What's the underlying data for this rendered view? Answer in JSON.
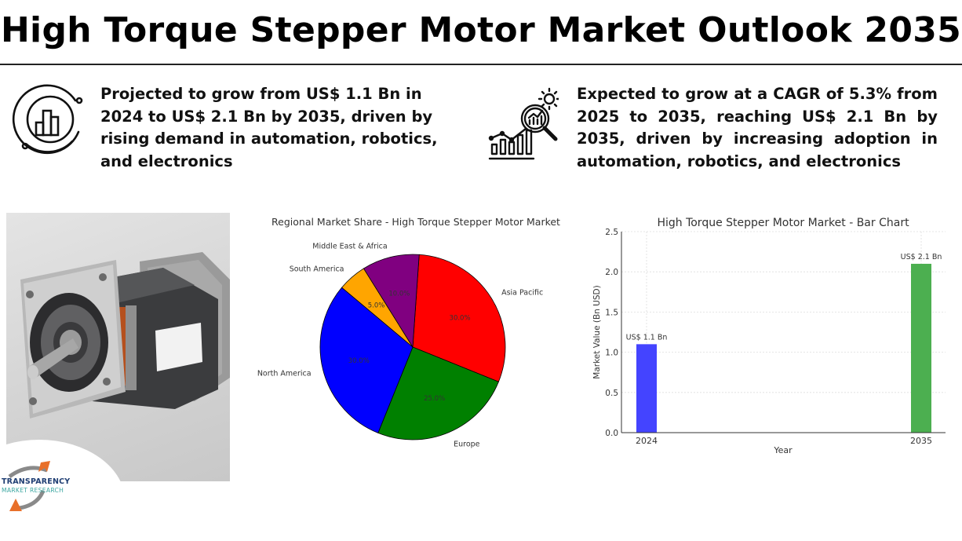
{
  "header": {
    "title": "High Torque Stepper Motor Market Outlook 2035"
  },
  "stats": [
    {
      "icon": "bar-chart-circle-icon",
      "text": "Projected to grow from US$ 1.1 Bn in 2024 to US$ 2.1 Bn by 2035, driven by rising demand in automation, robotics, and electronics"
    },
    {
      "icon": "growth-analysis-magnifier-icon",
      "text": "Expected to grow at a CAGR of 5.3% from 2025 to 2035, reaching US$ 2.1 Bn by 2035, driven by increasing adoption in automation, robotics, and electronics"
    }
  ],
  "image": {
    "subject": "high-torque-stepper-motor-photo"
  },
  "logo": {
    "name": "TRANSPARENCY",
    "subtitle": "MARKET RESEARCH",
    "colors": {
      "navy": "#1f3e73",
      "teal": "#3aa6a0",
      "orange": "#e8702a",
      "gray": "#8a8a8a"
    }
  },
  "chart_data": [
    {
      "type": "pie",
      "title": "Regional Market Share - High Torque Stepper Motor Market",
      "categories": [
        "Asia Pacific",
        "Europe",
        "North America",
        "South America",
        "Middle East & Africa"
      ],
      "values": [
        30.0,
        25.0,
        30.0,
        5.0,
        10.0
      ],
      "value_labels": [
        "30.0%",
        "25.0%",
        "30.0%",
        "5.0%",
        "10.0%"
      ],
      "colors": [
        "#ff0000",
        "#008000",
        "#0000ff",
        "#ffa500",
        "#800080"
      ],
      "start_angle_deg": 90,
      "direction": "clockwise",
      "legend": "none (labels on slices)"
    },
    {
      "type": "bar",
      "title": "High Torque Stepper Motor Market - Bar Chart",
      "categories": [
        "2024",
        "2035"
      ],
      "values": [
        1.1,
        2.1
      ],
      "value_labels": [
        "US$ 1.1 Bn",
        "US$ 2.1 Bn"
      ],
      "colors": [
        "#4444ff",
        "#4caf50"
      ],
      "xlabel": "Year",
      "ylabel": "Market Value (Bn USD)",
      "ylim": [
        0,
        2.5
      ],
      "yticks": [
        "0.0",
        "0.5",
        "1.0",
        "1.5",
        "2.0",
        "2.5"
      ],
      "grid": true
    }
  ]
}
